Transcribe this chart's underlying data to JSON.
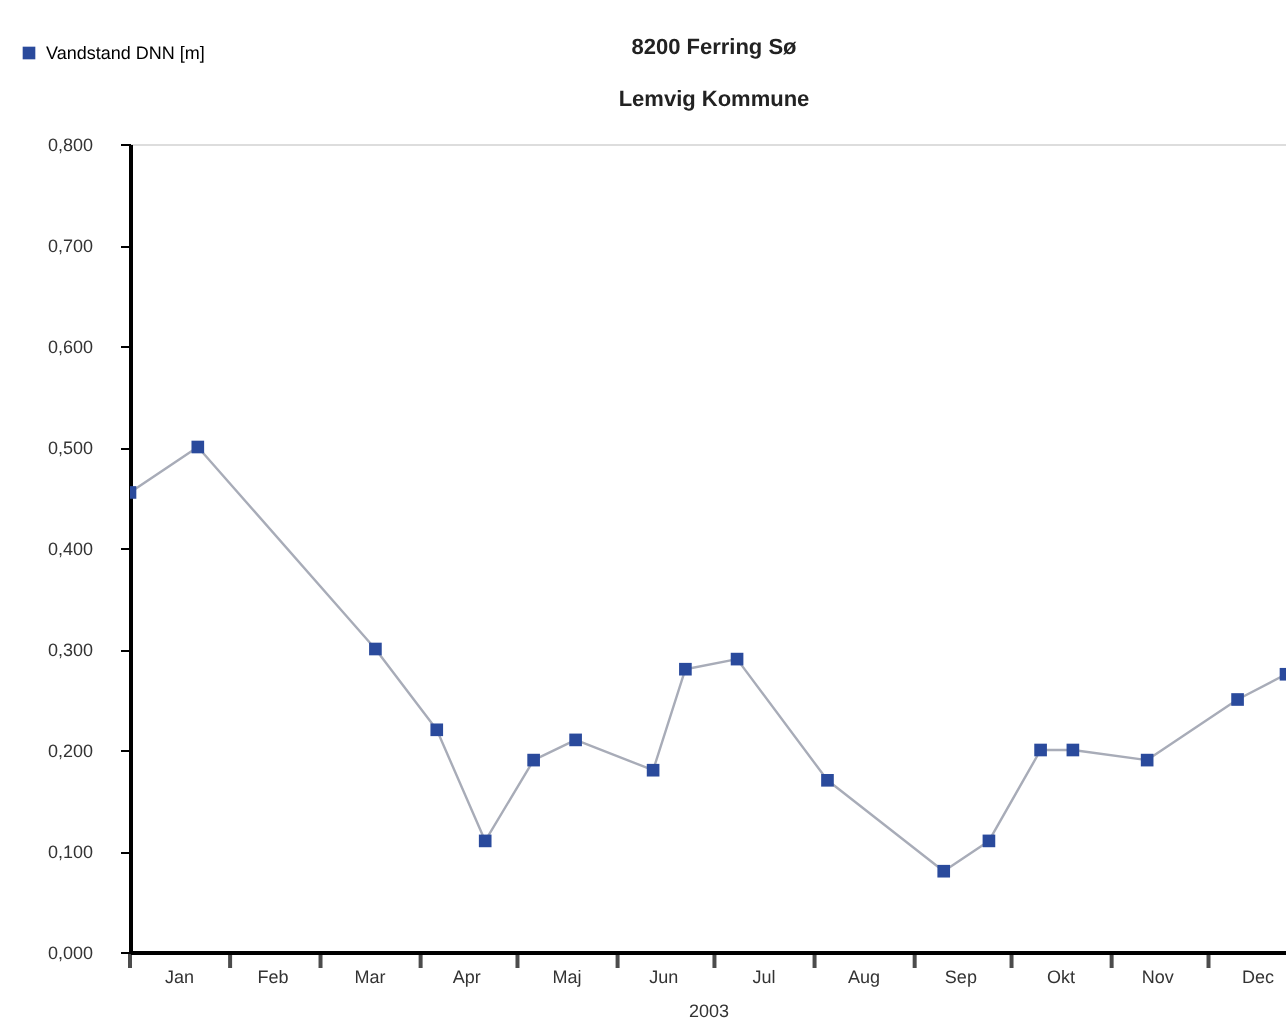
{
  "chart_data": {
    "type": "line",
    "title": "8200 Ferring Sø",
    "subtitle": "Lemvig Kommune",
    "xlabel": "2003",
    "x": [
      "2003-01-01",
      "2003-01-22",
      "2003-03-18",
      "2003-04-06",
      "2003-04-21",
      "2003-05-06",
      "2003-05-19",
      "2003-06-12",
      "2003-06-22",
      "2003-07-08",
      "2003-08-05",
      "2003-09-10",
      "2003-09-24",
      "2003-10-10",
      "2003-10-20",
      "2003-11-12",
      "2003-12-10",
      "2003-12-25"
    ],
    "series": [
      {
        "name": "Vandstand DNN [m]",
        "color": "#2a4a9c",
        "values": [
          0.455,
          0.5,
          0.3,
          0.22,
          0.11,
          0.19,
          0.21,
          0.18,
          0.28,
          0.29,
          0.17,
          0.08,
          0.11,
          0.2,
          0.2,
          0.19,
          0.25,
          0.275
        ]
      }
    ],
    "xlim": [
      "2003-01-01",
      "2003-12-25"
    ],
    "xticks": [
      {
        "value": "2003-01-01",
        "label": null
      },
      {
        "value": "2003-02-01",
        "label": null
      },
      {
        "value": "2003-03-01",
        "label": null
      },
      {
        "value": "2003-04-01",
        "label": null
      },
      {
        "value": "2003-05-01",
        "label": null
      },
      {
        "value": "2003-06-01",
        "label": null
      },
      {
        "value": "2003-07-01",
        "label": null
      },
      {
        "value": "2003-08-01",
        "label": null
      },
      {
        "value": "2003-09-01",
        "label": null
      },
      {
        "value": "2003-10-01",
        "label": null
      },
      {
        "value": "2003-11-01",
        "label": null
      },
      {
        "value": "2003-12-01",
        "label": null
      },
      {
        "value": "2003-01-16",
        "label": "Jan"
      },
      {
        "value": "2003-02-14",
        "label": "Feb"
      },
      {
        "value": "2003-03-16",
        "label": "Mar"
      },
      {
        "value": "2003-04-15",
        "label": "Apr"
      },
      {
        "value": "2003-05-16",
        "label": "Maj"
      },
      {
        "value": "2003-06-15",
        "label": "Jun"
      },
      {
        "value": "2003-07-16",
        "label": "Jul"
      },
      {
        "value": "2003-08-16",
        "label": "Aug"
      },
      {
        "value": "2003-09-15",
        "label": "Sep"
      },
      {
        "value": "2003-10-16",
        "label": "Okt"
      },
      {
        "value": "2003-11-15",
        "label": "Nov"
      },
      {
        "value": "2003-12-16",
        "label": "Dec"
      }
    ],
    "ylim": [
      0,
      0.8
    ],
    "yticks": [
      {
        "value": 0,
        "label": "0,000"
      },
      {
        "value": 0.1,
        "label": "0,100"
      },
      {
        "value": 0.2,
        "label": "0,200"
      },
      {
        "value": 0.3,
        "label": "0,300"
      },
      {
        "value": 0.4,
        "label": "0,400"
      },
      {
        "value": 0.5,
        "label": "0,500"
      },
      {
        "value": 0.6,
        "label": "0,600"
      },
      {
        "value": 0.7,
        "label": "0,700"
      },
      {
        "value": 0.8,
        "label": "0,800"
      }
    ],
    "grid": false,
    "legend": "top left",
    "marker": "square",
    "line_style": "solid"
  }
}
